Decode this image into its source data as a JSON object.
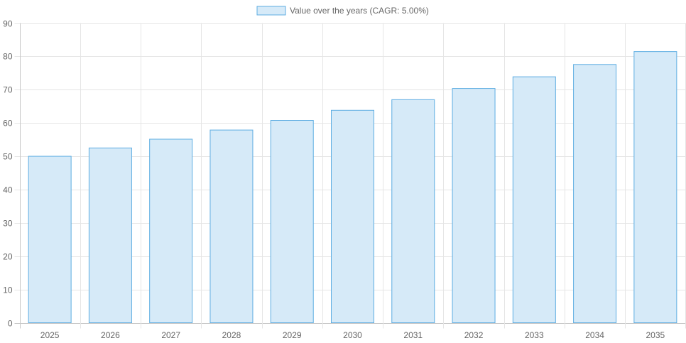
{
  "chart_data": {
    "type": "bar",
    "title": "",
    "xlabel": "",
    "ylabel": "",
    "legend": {
      "position": "top",
      "entries": [
        "Value over the years (CAGR: 5.00%)"
      ]
    },
    "categories": [
      "2025",
      "2026",
      "2027",
      "2028",
      "2029",
      "2030",
      "2031",
      "2032",
      "2033",
      "2034",
      "2035"
    ],
    "series": [
      {
        "name": "Value over the years (CAGR: 5.00%)",
        "values": [
          50,
          52.5,
          55.13,
          57.88,
          60.78,
          63.81,
          67.0,
          70.36,
          73.87,
          77.57,
          81.44
        ]
      }
    ],
    "ylim": [
      0,
      90
    ],
    "yticks": [
      0,
      10,
      20,
      30,
      40,
      50,
      60,
      70,
      80,
      90
    ],
    "grid": true,
    "colors": {
      "bar_fill": "#d6eaf8",
      "bar_border": "#5dade2",
      "grid": "#e5e5e5",
      "axis": "#c8c8c8"
    }
  }
}
